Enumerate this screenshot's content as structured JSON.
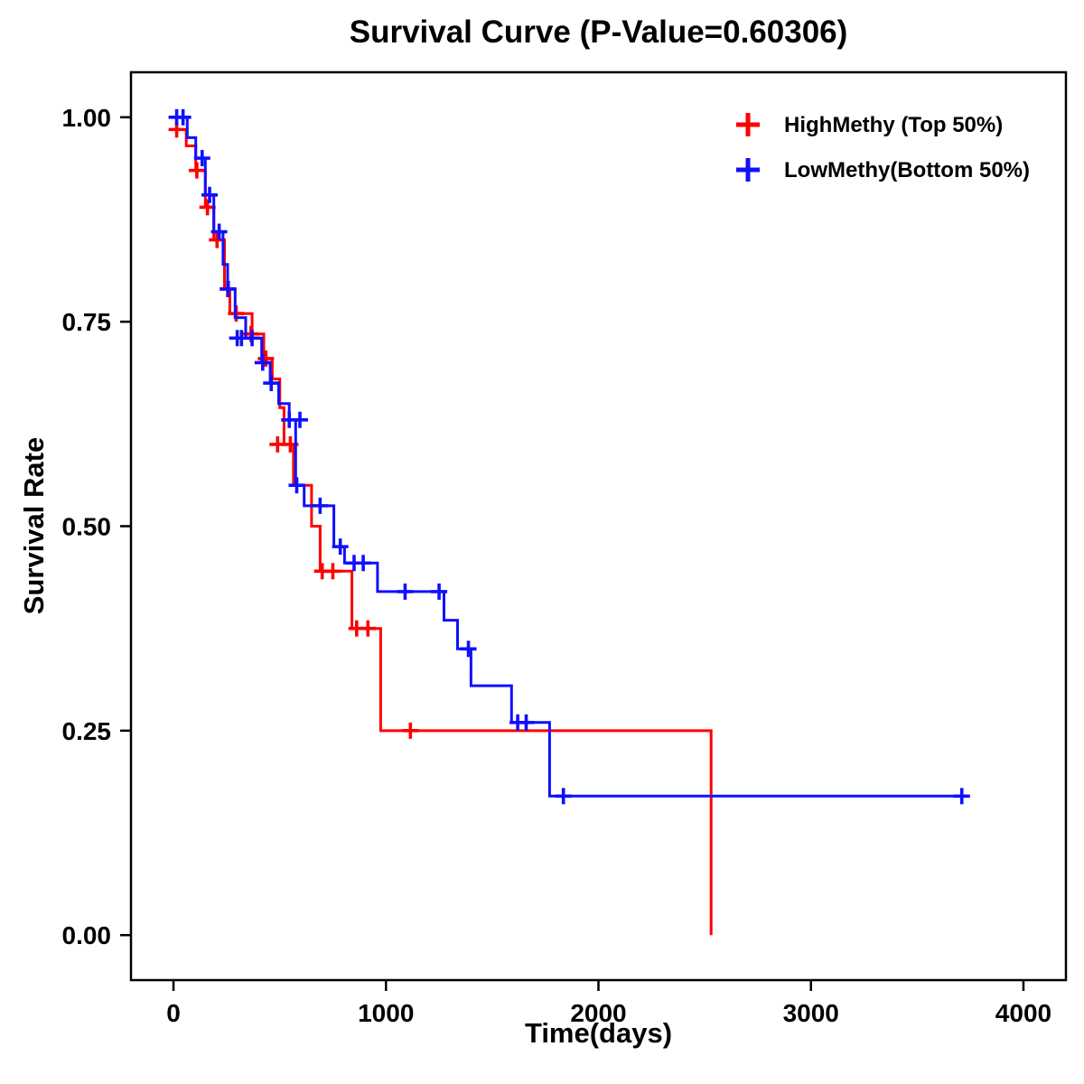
{
  "chart_data": {
    "type": "line",
    "subtype": "kaplan-meier-step",
    "title": "Survival Curve (P-Value=0.60306)",
    "p_value": 0.60306,
    "xlabel": "Time(days)",
    "ylabel": "Survival Rate",
    "xlim": [
      -200,
      4200
    ],
    "ylim": [
      -0.055,
      1.055
    ],
    "xticks": [
      0,
      1000,
      2000,
      3000,
      4000
    ],
    "yticks": [
      0.0,
      0.25,
      0.5,
      0.75,
      1.0
    ],
    "ytick_labels": [
      "0.00",
      "0.25",
      "0.50",
      "0.75",
      "1.00"
    ],
    "grid": false,
    "legend_position": "top-right-inside",
    "axis_color": "#000000",
    "series": [
      {
        "id": "highmethy",
        "name": "HighMethy (Top 50%)",
        "color": "#FF0000",
        "steps": [
          [
            0,
            0.985
          ],
          [
            60,
            0.965
          ],
          [
            105,
            0.935
          ],
          [
            150,
            0.89
          ],
          [
            190,
            0.85
          ],
          [
            240,
            0.79
          ],
          [
            265,
            0.76
          ],
          [
            370,
            0.735
          ],
          [
            425,
            0.705
          ],
          [
            465,
            0.68
          ],
          [
            500,
            0.645
          ],
          [
            520,
            0.6
          ],
          [
            565,
            0.55
          ],
          [
            650,
            0.5
          ],
          [
            690,
            0.445
          ],
          [
            840,
            0.375
          ],
          [
            975,
            0.25
          ],
          [
            2530,
            0.0
          ]
        ],
        "censors": [
          [
            15,
            0.985
          ],
          [
            110,
            0.935
          ],
          [
            160,
            0.89
          ],
          [
            205,
            0.85
          ],
          [
            255,
            0.79
          ],
          [
            295,
            0.76
          ],
          [
            365,
            0.735
          ],
          [
            435,
            0.705
          ],
          [
            490,
            0.6
          ],
          [
            550,
            0.6
          ],
          [
            700,
            0.445
          ],
          [
            750,
            0.445
          ],
          [
            862,
            0.375
          ],
          [
            915,
            0.375
          ],
          [
            1115,
            0.25
          ]
        ]
      },
      {
        "id": "lowmethy",
        "name": "LowMethy(Bottom 50%)",
        "color": "#1010FF",
        "steps": [
          [
            0,
            1.0
          ],
          [
            65,
            0.975
          ],
          [
            105,
            0.95
          ],
          [
            150,
            0.905
          ],
          [
            190,
            0.86
          ],
          [
            233,
            0.82
          ],
          [
            255,
            0.79
          ],
          [
            290,
            0.755
          ],
          [
            340,
            0.73
          ],
          [
            415,
            0.7
          ],
          [
            455,
            0.675
          ],
          [
            495,
            0.65
          ],
          [
            545,
            0.63
          ],
          [
            575,
            0.55
          ],
          [
            615,
            0.525
          ],
          [
            755,
            0.475
          ],
          [
            805,
            0.455
          ],
          [
            960,
            0.42
          ],
          [
            1273,
            0.385
          ],
          [
            1337,
            0.35
          ],
          [
            1400,
            0.305
          ],
          [
            1591,
            0.26
          ],
          [
            1770,
            0.17
          ],
          [
            3710,
            0.17
          ]
        ],
        "censors": [
          [
            15,
            1.0
          ],
          [
            45,
            1.0
          ],
          [
            135,
            0.95
          ],
          [
            170,
            0.905
          ],
          [
            215,
            0.86
          ],
          [
            258,
            0.79
          ],
          [
            300,
            0.73
          ],
          [
            320,
            0.73
          ],
          [
            370,
            0.73
          ],
          [
            420,
            0.7
          ],
          [
            460,
            0.675
          ],
          [
            545,
            0.63
          ],
          [
            595,
            0.63
          ],
          [
            580,
            0.55
          ],
          [
            690,
            0.525
          ],
          [
            785,
            0.475
          ],
          [
            850,
            0.455
          ],
          [
            893,
            0.455
          ],
          [
            1090,
            0.42
          ],
          [
            1250,
            0.42
          ],
          [
            1388,
            0.35
          ],
          [
            1620,
            0.26
          ],
          [
            1660,
            0.26
          ],
          [
            1835,
            0.17
          ],
          [
            3710,
            0.17
          ]
        ]
      }
    ]
  }
}
